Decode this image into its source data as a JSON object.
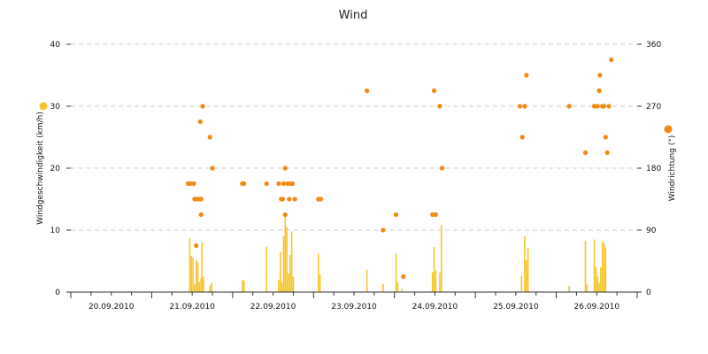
{
  "chart_data": {
    "type": "bar+scatter",
    "title": "Wind",
    "x_categories": [
      "20.09.2010",
      "21.09.2010",
      "22.09.2010",
      "23.09.2010",
      "24.09.2010",
      "25.09.2010",
      "26.09.2010"
    ],
    "x_range_days": [
      0,
      7
    ],
    "y_left": {
      "label": "Windgeschwindigkeit (km/h)",
      "ticks": [
        "0",
        "10",
        "20",
        "30",
        "40"
      ],
      "min": 0,
      "max": 40
    },
    "y_right": {
      "label": "Windrichtung (°)",
      "ticks": [
        "0",
        "90",
        "180",
        "270",
        "360"
      ],
      "min": 0,
      "max": 360
    },
    "grid": true,
    "colors": {
      "speed": "#f6c52a",
      "direction": "#f08a12",
      "speed_legend": "#f6c52a",
      "direction_legend": "#f08a12",
      "grid": "#cccccc",
      "axis": "#333333"
    },
    "series": [
      {
        "name": "Windgeschwindigkeit",
        "kind": "bar",
        "axis": "left",
        "points": [
          [
            1.47,
            8.7
          ],
          [
            1.49,
            5.8
          ],
          [
            1.51,
            5.5
          ],
          [
            1.53,
            1.2
          ],
          [
            1.55,
            5.2
          ],
          [
            1.57,
            4.8
          ],
          [
            1.59,
            1.6
          ],
          [
            1.61,
            2.2
          ],
          [
            1.62,
            8.0
          ],
          [
            1.64,
            2.5
          ],
          [
            1.72,
            1.0
          ],
          [
            1.74,
            1.5
          ],
          [
            2.12,
            1.9
          ],
          [
            2.14,
            1.9
          ],
          [
            2.42,
            7.3
          ],
          [
            2.57,
            2.0
          ],
          [
            2.59,
            6.5
          ],
          [
            2.61,
            1.5
          ],
          [
            2.63,
            9.0
          ],
          [
            2.65,
            12.5
          ],
          [
            2.67,
            10.5
          ],
          [
            2.69,
            3.0
          ],
          [
            2.71,
            6.0
          ],
          [
            2.73,
            9.8
          ],
          [
            2.75,
            2.5
          ],
          [
            3.06,
            6.2
          ],
          [
            3.08,
            2.8
          ],
          [
            3.66,
            3.6
          ],
          [
            3.86,
            1.3
          ],
          [
            4.02,
            6.2
          ],
          [
            4.04,
            1.6
          ],
          [
            4.09,
            0.5
          ],
          [
            4.47,
            3.2
          ],
          [
            4.49,
            7.3
          ],
          [
            4.51,
            3.5
          ],
          [
            4.56,
            3.2
          ],
          [
            4.58,
            10.8
          ],
          [
            5.57,
            2.6
          ],
          [
            5.61,
            9.0
          ],
          [
            5.63,
            5.2
          ],
          [
            5.65,
            7.2
          ],
          [
            6.16,
            1.0
          ],
          [
            6.36,
            8.3
          ],
          [
            6.38,
            1.2
          ],
          [
            6.47,
            8.5
          ],
          [
            6.49,
            4.0
          ],
          [
            6.51,
            2.5
          ],
          [
            6.53,
            1.5
          ],
          [
            6.55,
            4.0
          ],
          [
            6.57,
            8.2
          ],
          [
            6.59,
            7.8
          ],
          [
            6.61,
            7.2
          ]
        ]
      },
      {
        "name": "Windrichtung",
        "kind": "scatter",
        "axis": "right",
        "points": [
          [
            1.45,
            157.5
          ],
          [
            1.48,
            157.5
          ],
          [
            1.52,
            157.5
          ],
          [
            1.53,
            135
          ],
          [
            1.56,
            135
          ],
          [
            1.59,
            135
          ],
          [
            1.61,
            135
          ],
          [
            1.55,
            67.5
          ],
          [
            1.6,
            247.5
          ],
          [
            1.61,
            112.5
          ],
          [
            1.63,
            270
          ],
          [
            1.72,
            225
          ],
          [
            1.75,
            180
          ],
          [
            2.12,
            157.5
          ],
          [
            2.14,
            157.5
          ],
          [
            2.42,
            157.5
          ],
          [
            2.57,
            157.5
          ],
          [
            2.6,
            135
          ],
          [
            2.62,
            135
          ],
          [
            2.63,
            157.5
          ],
          [
            2.65,
            180
          ],
          [
            2.65,
            112.5
          ],
          [
            2.68,
            157.5
          ],
          [
            2.7,
            135
          ],
          [
            2.72,
            157.5
          ],
          [
            2.74,
            157.5
          ],
          [
            2.77,
            135
          ],
          [
            3.06,
            135
          ],
          [
            3.09,
            135
          ],
          [
            3.66,
            292.5
          ],
          [
            3.86,
            90
          ],
          [
            4.02,
            112.5
          ],
          [
            4.11,
            22.5
          ],
          [
            4.47,
            112.5
          ],
          [
            4.49,
            292.5
          ],
          [
            4.51,
            112.5
          ],
          [
            4.56,
            270
          ],
          [
            4.59,
            180
          ],
          [
            5.55,
            270
          ],
          [
            5.58,
            225
          ],
          [
            5.61,
            270
          ],
          [
            5.63,
            315
          ],
          [
            6.16,
            270
          ],
          [
            6.36,
            202.5
          ],
          [
            6.47,
            270
          ],
          [
            6.51,
            270
          ],
          [
            6.53,
            292.5
          ],
          [
            6.54,
            315
          ],
          [
            6.57,
            270
          ],
          [
            6.59,
            270
          ],
          [
            6.61,
            225
          ],
          [
            6.63,
            202.5
          ],
          [
            6.65,
            270
          ],
          [
            6.68,
            337.5
          ]
        ]
      }
    ]
  }
}
